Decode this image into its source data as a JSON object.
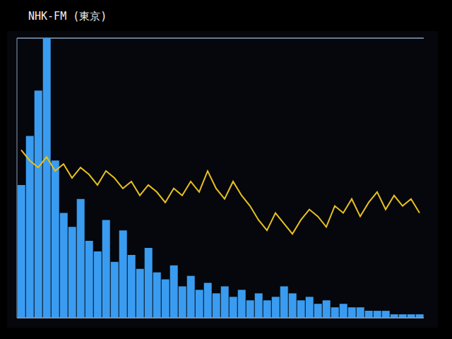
{
  "chart_data": {
    "type": "bar",
    "title": "NHK-FM (東京)",
    "categories": [
      null,
      null,
      null,
      null,
      null,
      null,
      null,
      null,
      null,
      null,
      null,
      null,
      null,
      null,
      null,
      null,
      null,
      null,
      null,
      null,
      null,
      null,
      null,
      null,
      null,
      null,
      null,
      null,
      null,
      null,
      null,
      null,
      null,
      null,
      null,
      null,
      null,
      null,
      null,
      null,
      null,
      null,
      null,
      null,
      null,
      null,
      null,
      null
    ],
    "series": [
      {
        "type": "bar",
        "color": "#3a9cf0",
        "values": [
          3.8,
          5.2,
          6.5,
          8.0,
          4.5,
          3.0,
          2.6,
          3.4,
          2.2,
          1.9,
          2.8,
          1.6,
          2.5,
          1.8,
          1.4,
          2.0,
          1.3,
          1.1,
          1.5,
          0.9,
          1.2,
          0.8,
          1.0,
          0.7,
          0.9,
          0.6,
          0.8,
          0.5,
          0.7,
          0.5,
          0.6,
          0.9,
          0.7,
          0.5,
          0.6,
          0.4,
          0.5,
          0.3,
          0.4,
          0.3,
          0.3,
          0.2,
          0.2,
          0.2,
          0.1,
          0.1,
          0.1,
          0.1
        ]
      },
      {
        "type": "line",
        "color": "#e8c020",
        "values": [
          4.8,
          4.5,
          4.3,
          4.6,
          4.2,
          4.4,
          4.0,
          4.3,
          4.1,
          3.8,
          4.2,
          4.0,
          3.7,
          3.9,
          3.5,
          3.8,
          3.6,
          3.3,
          3.7,
          3.5,
          3.9,
          3.6,
          4.2,
          3.7,
          3.4,
          3.9,
          3.5,
          3.2,
          2.8,
          2.5,
          3.0,
          2.7,
          2.4,
          2.8,
          3.1,
          2.9,
          2.6,
          3.2,
          3.0,
          3.4,
          2.9,
          3.3,
          3.6,
          3.1,
          3.5,
          3.2,
          3.4,
          3.0
        ]
      }
    ],
    "ylim": [
      0,
      8
    ],
    "yticks": [
      0,
      1,
      2,
      3,
      4,
      5,
      6,
      7,
      8
    ],
    "grid": true,
    "tick_labels": false
  }
}
